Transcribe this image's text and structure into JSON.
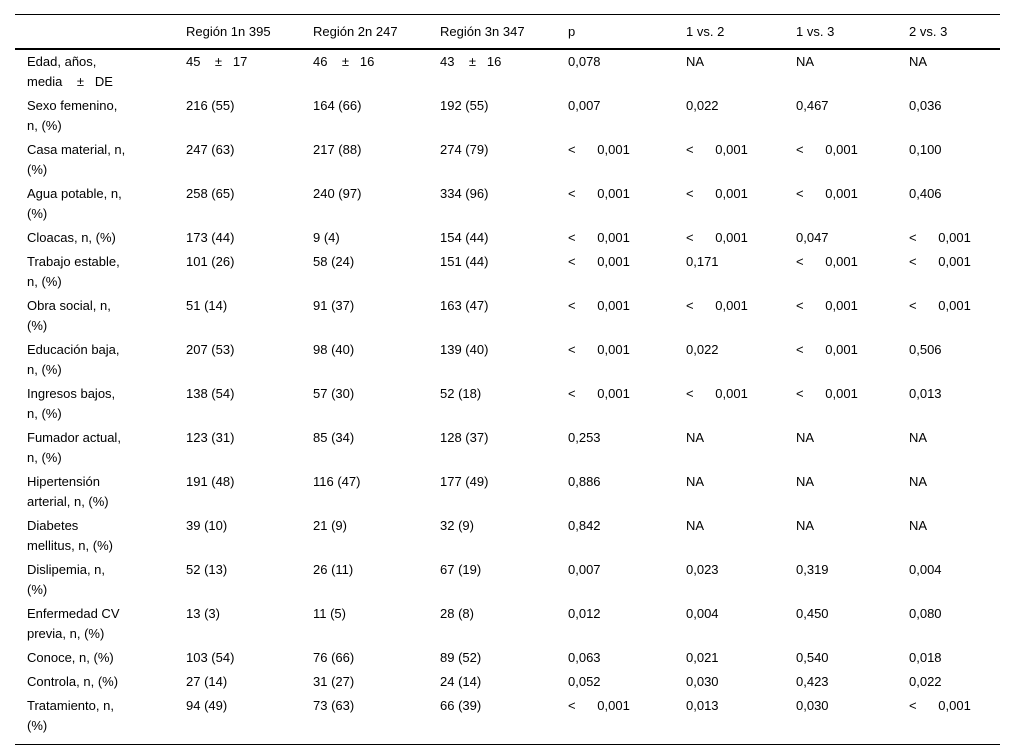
{
  "colors": {
    "text": "#000000",
    "background": "#ffffff",
    "rule": "#000000"
  },
  "table": {
    "columns": [
      "",
      "Región 1n 395",
      "Región 2n 247",
      "Región 3n 347",
      "p",
      "1 vs. 2",
      "1 vs. 3",
      "2 vs. 3"
    ],
    "rows": [
      {
        "label": "Edad, años,\nmedia    ±   DE",
        "values": [
          "45    ±   17",
          "46    ±   16",
          "43    ±   16",
          "0,078",
          "NA",
          "NA",
          "NA"
        ]
      },
      {
        "label": "Sexo femenino,\nn, (%)",
        "values": [
          "216 (55)",
          "164 (66)",
          "192 (55)",
          "0,007",
          "0,022",
          "0,467",
          "0,036"
        ]
      },
      {
        "label": "Casa material, n,\n(%)",
        "values": [
          "247 (63)",
          "217 (88)",
          "274 (79)",
          "<      0,001",
          "<      0,001",
          "<      0,001",
          "0,100"
        ]
      },
      {
        "label": "Agua potable, n,\n(%)",
        "values": [
          "258 (65)",
          "240 (97)",
          "334 (96)",
          "<      0,001",
          "<      0,001",
          "<      0,001",
          "0,406"
        ]
      },
      {
        "label": "Cloacas, n, (%)",
        "values": [
          "173 (44)",
          "9 (4)",
          "154 (44)",
          "<      0,001",
          "<      0,001",
          "0,047",
          "<      0,001"
        ]
      },
      {
        "label": "Trabajo estable,\nn, (%)",
        "values": [
          "101 (26)",
          "58 (24)",
          "151 (44)",
          "<      0,001",
          "0,171",
          "<      0,001",
          "<      0,001"
        ]
      },
      {
        "label": "Obra social, n,\n(%)",
        "values": [
          "51 (14)",
          "91 (37)",
          "163 (47)",
          "<      0,001",
          "<      0,001",
          "<      0,001",
          "<      0,001"
        ]
      },
      {
        "label": "Educación baja,\nn, (%)",
        "values": [
          "207 (53)",
          "98 (40)",
          "139 (40)",
          "<      0,001",
          "0,022",
          "<      0,001",
          "0,506"
        ]
      },
      {
        "label": "Ingresos bajos,\nn, (%)",
        "values": [
          "138 (54)",
          "57 (30)",
          "52 (18)",
          "<      0,001",
          "<      0,001",
          "<      0,001",
          "0,013"
        ]
      },
      {
        "label": "Fumador actual,\nn, (%)",
        "values": [
          "123 (31)",
          "85 (34)",
          "128 (37)",
          "0,253",
          "NA",
          "NA",
          "NA"
        ]
      },
      {
        "label": "Hipertensión\narterial, n, (%)",
        "values": [
          "191 (48)",
          "116 (47)",
          "177 (49)",
          "0,886",
          "NA",
          "NA",
          "NA"
        ]
      },
      {
        "label": "Diabetes\nmellitus, n, (%)",
        "values": [
          "39 (10)",
          "21 (9)",
          "32 (9)",
          "0,842",
          "NA",
          "NA",
          "NA"
        ]
      },
      {
        "label": "Dislipemia, n,\n(%)",
        "values": [
          "52 (13)",
          "26 (11)",
          "67 (19)",
          "0,007",
          "0,023",
          "0,319",
          "0,004"
        ]
      },
      {
        "label": "Enfermedad CV\nprevia, n, (%)",
        "values": [
          "13 (3)",
          "11 (5)",
          "28 (8)",
          "0,012",
          "0,004",
          "0,450",
          "0,080"
        ]
      },
      {
        "label": "Conoce, n, (%)",
        "values": [
          "103 (54)",
          "76 (66)",
          "89 (52)",
          "0,063",
          "0,021",
          "0,540",
          "0,018"
        ]
      },
      {
        "label": "Controla, n, (%)",
        "values": [
          "27 (14)",
          "31 (27)",
          "24 (14)",
          "0,052",
          "0,030",
          "0,423",
          "0,022"
        ]
      },
      {
        "label": "Tratamiento, n,\n(%)",
        "values": [
          "94 (49)",
          "73 (63)",
          "66 (39)",
          "<      0,001",
          "0,013",
          "0,030",
          "<      0,001"
        ]
      }
    ]
  }
}
